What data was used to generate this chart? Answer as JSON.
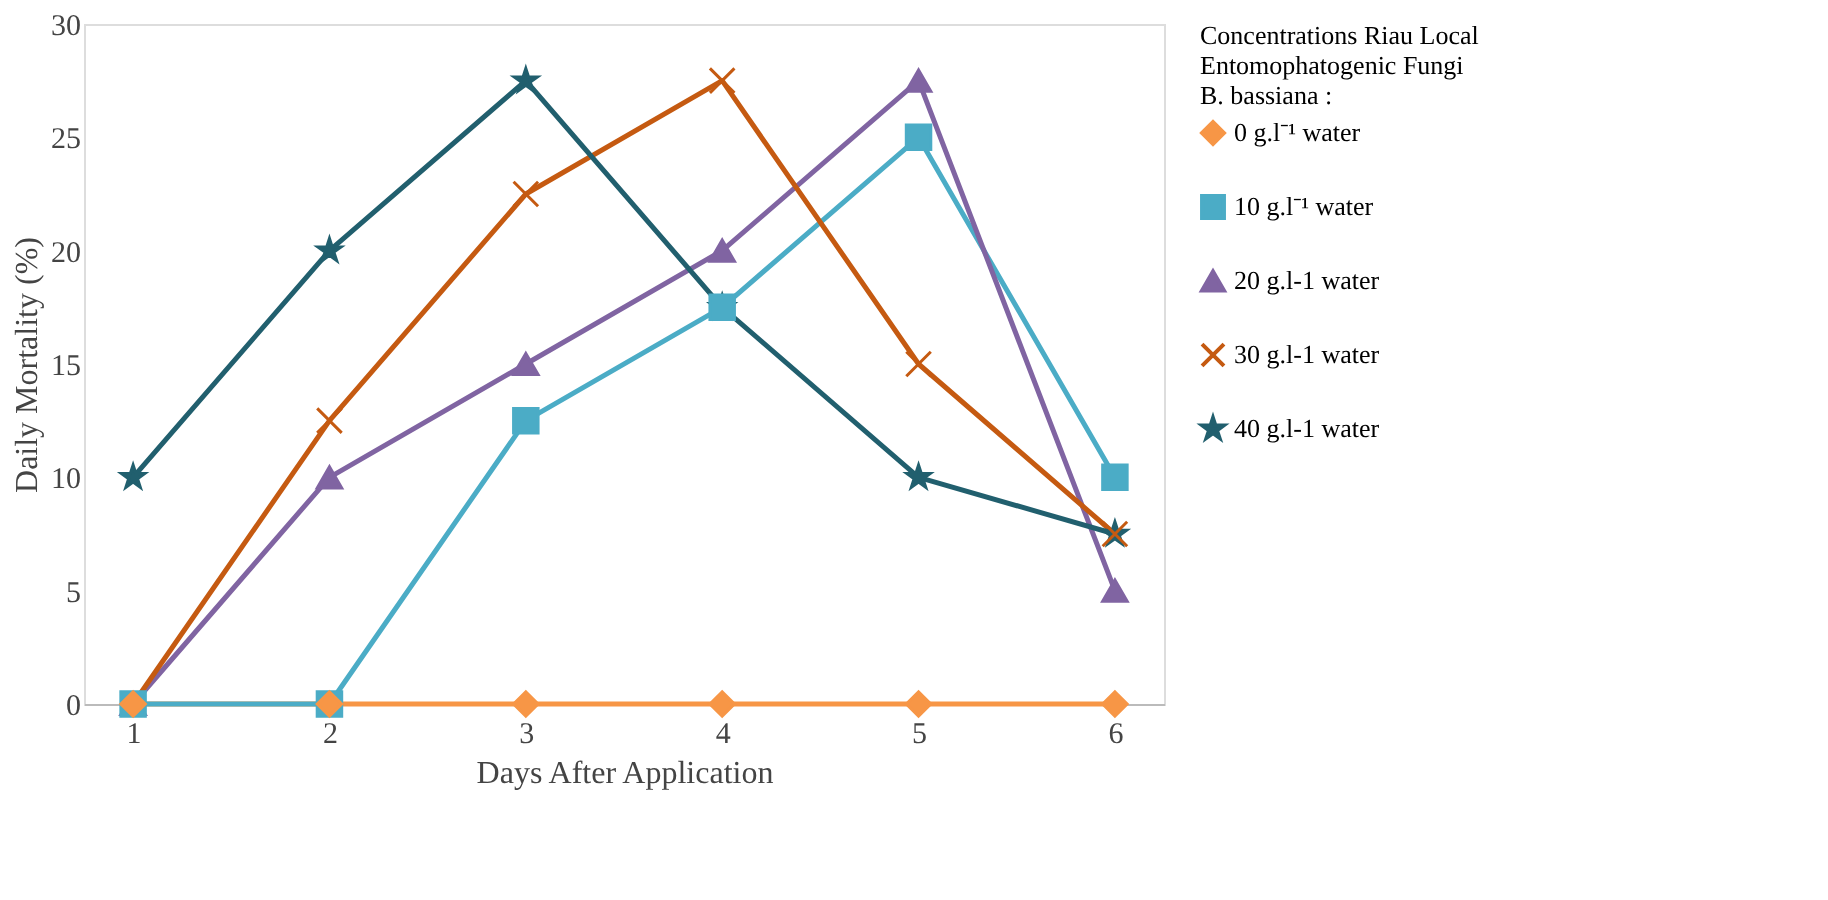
{
  "chart_data": {
    "type": "line",
    "xlabel": "Days After Application",
    "ylabel": "Daily Mortality (%)",
    "legend_title": "Concentrations  Riau Local\nEntomophatogenic  Fungi\nB. bassiana :",
    "categories": [
      "1",
      "2",
      "3",
      "4",
      "5",
      "6"
    ],
    "ylim": [
      0,
      30
    ],
    "yticks": [
      0,
      5,
      10,
      15,
      20,
      25,
      30
    ],
    "grid": false,
    "legend": "right",
    "line_style": "solid",
    "series": [
      {
        "name": "0 g.l⁻¹ water",
        "color": "#f79646",
        "marker": "diamond",
        "values": [
          0,
          0,
          0,
          0,
          0,
          0
        ]
      },
      {
        "name": "10 g.l⁻¹ water",
        "color": "#4bacc6",
        "marker": "square",
        "values": [
          0,
          0,
          12.5,
          17.5,
          25,
          10
        ]
      },
      {
        "name": "20 g.l-1 water",
        "color": "#8064a2",
        "marker": "triangle",
        "values": [
          0,
          10,
          15,
          20,
          27.5,
          5
        ]
      },
      {
        "name": "30 g.l-1 water",
        "color": "#c55a11",
        "marker": "cross",
        "values": [
          0,
          12.5,
          22.5,
          27.5,
          15,
          7.5
        ]
      },
      {
        "name": "40 g.l-1 water",
        "color": "#215f6e",
        "marker": "star",
        "values": [
          10,
          20,
          27.5,
          17.5,
          10,
          7.5
        ]
      }
    ]
  }
}
